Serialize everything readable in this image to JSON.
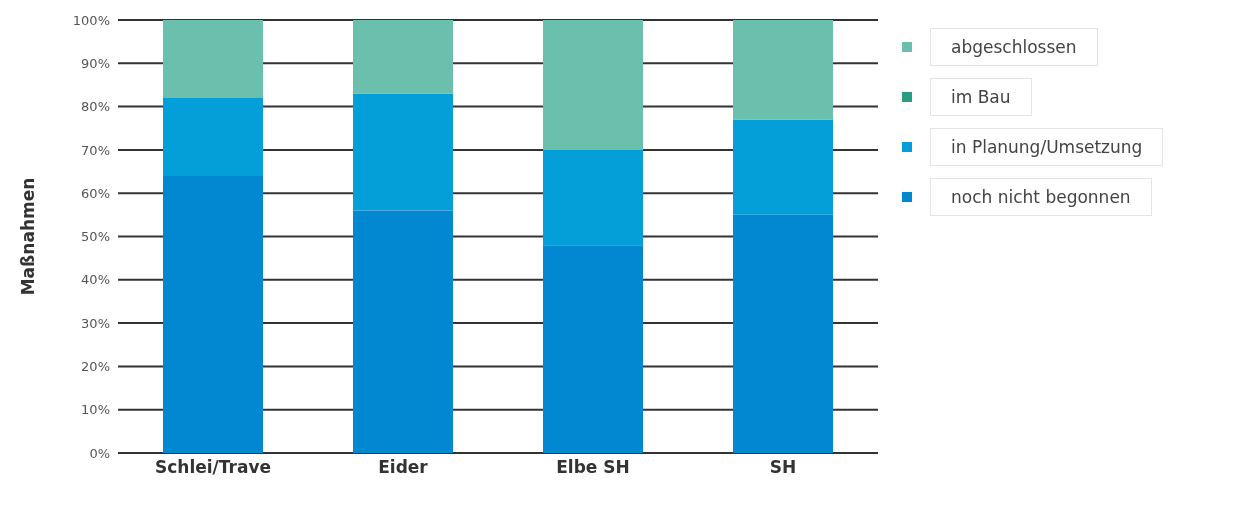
{
  "chart_data": {
    "type": "bar",
    "stacked": true,
    "ylabel": "Maßnahmen",
    "categories": [
      "Schlei/Trave",
      "Eider",
      "Elbe SH",
      "SH"
    ],
    "series": [
      {
        "name": "noch nicht begonnen",
        "color": "#0288d1",
        "values": [
          64,
          56,
          48,
          55
        ]
      },
      {
        "name": "in Planung/Umsetzung",
        "color": "#049fd9",
        "values": [
          18,
          27,
          22,
          22
        ]
      },
      {
        "name": "im Bau",
        "color": "#2a9d80",
        "values": [
          0,
          0,
          0,
          0
        ]
      },
      {
        "name": "abgeschlossen",
        "color": "#6abfad",
        "values": [
          18,
          17,
          30,
          23
        ]
      }
    ],
    "ylim": [
      0,
      100
    ],
    "yticks": [
      {
        "value": 0,
        "label": "0%"
      },
      {
        "value": 10,
        "label": "10%"
      },
      {
        "value": 20,
        "label": "20%"
      },
      {
        "value": 30,
        "label": "30%"
      },
      {
        "value": 40,
        "label": "40%"
      },
      {
        "value": 50,
        "label": "50%"
      },
      {
        "value": 60,
        "label": "60%"
      },
      {
        "value": 70,
        "label": "70%"
      },
      {
        "value": 80,
        "label": "80%"
      },
      {
        "value": 90,
        "label": "90%"
      },
      {
        "value": 100,
        "label": "100%"
      }
    ],
    "grid": "y",
    "legend": "right"
  }
}
